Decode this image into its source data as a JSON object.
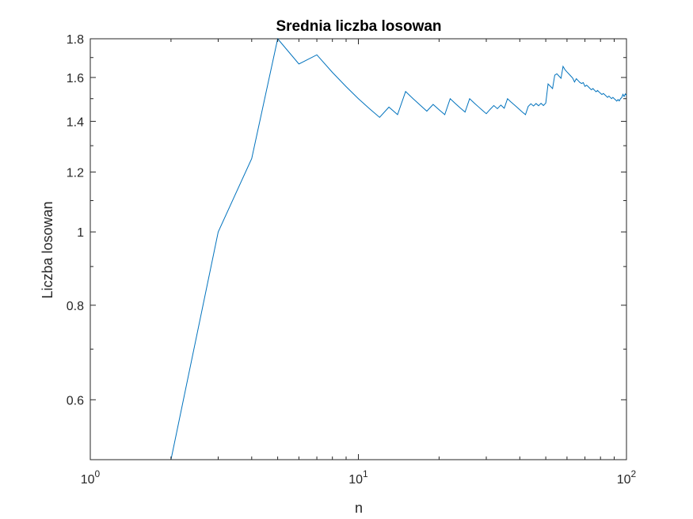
{
  "chart_data": {
    "type": "line",
    "title": "Srednia liczba losowan",
    "xlabel": "n",
    "ylabel": "Liczba losowan",
    "x_scale": "log",
    "y_scale": "log",
    "xlim": [
      1,
      100
    ],
    "ylim": [
      0.5,
      1.8
    ],
    "x_ticks": [
      {
        "value": 1,
        "base": "10",
        "exp": "0"
      },
      {
        "value": 10,
        "base": "10",
        "exp": "1"
      },
      {
        "value": 100,
        "base": "10",
        "exp": "2"
      }
    ],
    "y_ticks": [
      {
        "value": 0.6,
        "label": "0.6"
      },
      {
        "value": 0.8,
        "label": "0.8"
      },
      {
        "value": 1,
        "label": "1"
      },
      {
        "value": 1.2,
        "label": "1.2"
      },
      {
        "value": 1.4,
        "label": "1.4"
      },
      {
        "value": 1.6,
        "label": "1.6"
      },
      {
        "value": 1.8,
        "label": "1.8"
      }
    ],
    "grid": false,
    "box": true,
    "colors": {
      "series": "#0072BD",
      "axes": "#262626"
    },
    "series": [
      {
        "x": [
          2,
          3,
          4,
          5,
          6,
          7,
          8,
          9,
          10,
          11,
          12,
          13,
          14,
          15,
          16,
          17,
          18,
          19,
          20,
          21,
          22,
          23,
          24,
          25,
          26,
          27,
          28,
          29,
          30,
          31,
          32,
          33,
          34,
          35,
          36,
          37,
          38,
          39,
          40,
          41,
          42,
          43,
          44,
          45,
          46,
          47,
          48,
          49,
          50,
          51,
          52,
          53,
          54,
          55,
          56,
          57,
          58,
          59,
          60,
          61,
          62,
          63,
          64,
          65,
          66,
          67,
          68,
          69,
          70,
          71,
          72,
          73,
          74,
          75,
          76,
          77,
          78,
          79,
          80,
          81,
          82,
          83,
          84,
          85,
          86,
          87,
          88,
          89,
          90,
          91,
          92,
          93,
          94,
          95,
          96,
          97,
          98,
          99,
          100
        ],
        "y": [
          0.5,
          1.0,
          1.25,
          1.8,
          1.667,
          1.714,
          1.625,
          1.556,
          1.5,
          1.455,
          1.417,
          1.462,
          1.429,
          1.533,
          1.5,
          1.471,
          1.444,
          1.474,
          1.45,
          1.429,
          1.5,
          1.478,
          1.458,
          1.44,
          1.5,
          1.481,
          1.464,
          1.448,
          1.433,
          1.452,
          1.469,
          1.455,
          1.471,
          1.457,
          1.5,
          1.486,
          1.474,
          1.462,
          1.45,
          1.439,
          1.429,
          1.465,
          1.477,
          1.467,
          1.478,
          1.468,
          1.479,
          1.469,
          1.48,
          1.569,
          1.558,
          1.547,
          1.611,
          1.618,
          1.607,
          1.596,
          1.655,
          1.638,
          1.627,
          1.617,
          1.607,
          1.597,
          1.578,
          1.594,
          1.585,
          1.576,
          1.571,
          1.575,
          1.557,
          1.563,
          1.556,
          1.548,
          1.541,
          1.547,
          1.539,
          1.532,
          1.538,
          1.531,
          1.525,
          1.519,
          1.524,
          1.518,
          1.512,
          1.506,
          1.512,
          1.506,
          1.5,
          1.506,
          1.5,
          1.495,
          1.489,
          1.496,
          1.49,
          1.5,
          1.505,
          1.52,
          1.51,
          1.522,
          1.515
        ]
      }
    ]
  }
}
